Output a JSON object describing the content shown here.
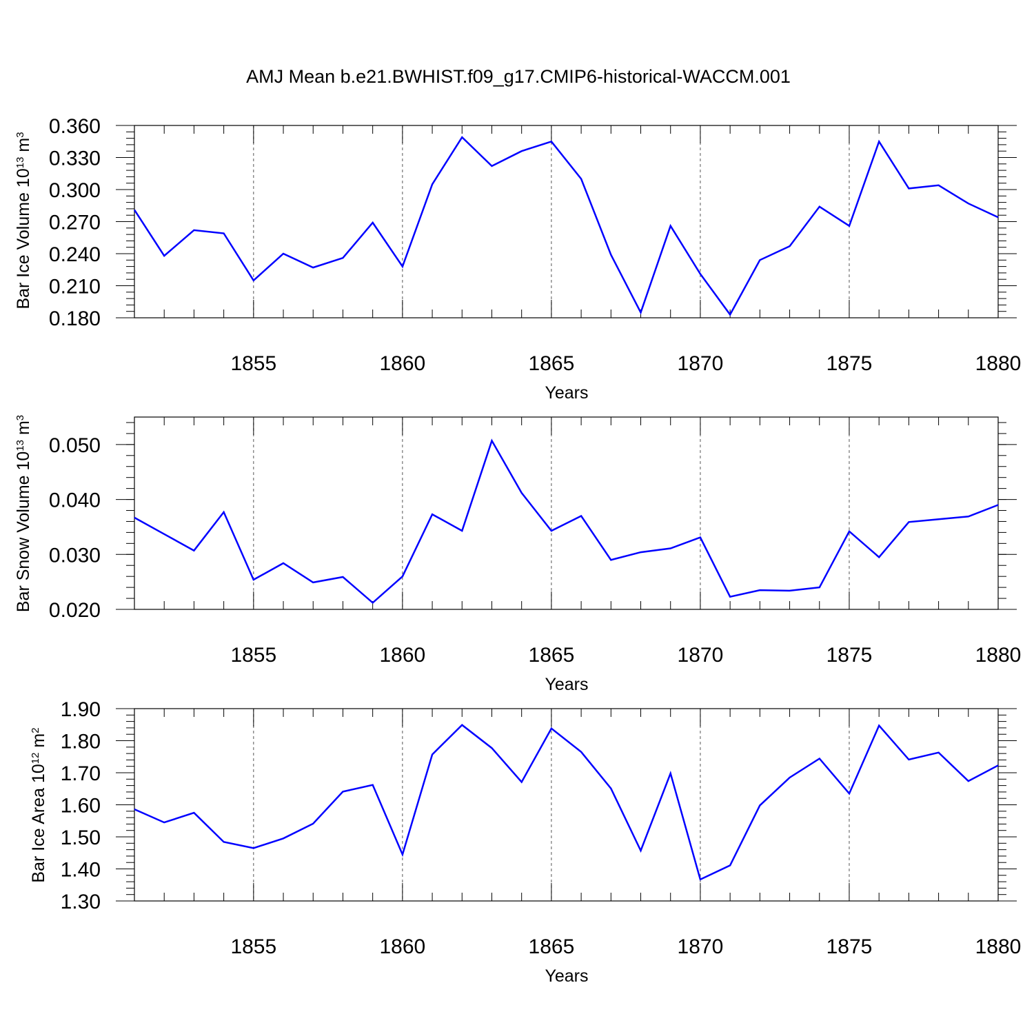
{
  "figure": {
    "title": "AMJ Mean b.e21.BWHIST.f09_g17.CMIP6-historical-WACCM.001"
  },
  "colors": {
    "series": "#0000ff",
    "axes": "#000000",
    "grid": "#555555"
  },
  "chart_data": [
    {
      "type": "line",
      "ylabel_parts": [
        "Bar Ice Volume 10",
        "13",
        " m",
        "3"
      ],
      "xlabel": "Years",
      "xlim": [
        1851,
        1880
      ],
      "ylim": [
        0.18,
        0.36
      ],
      "yticks": [
        "0.180",
        "0.210",
        "0.240",
        "0.270",
        "0.300",
        "0.330",
        "0.360"
      ],
      "xticks": [
        "1855",
        "1860",
        "1865",
        "1870",
        "1875",
        "1880"
      ],
      "grid": "vertical dashed at major x ticks",
      "x": [
        1851,
        1852,
        1853,
        1854,
        1855,
        1856,
        1857,
        1858,
        1859,
        1860,
        1861,
        1862,
        1863,
        1864,
        1865,
        1866,
        1867,
        1868,
        1869,
        1870,
        1871,
        1872,
        1873,
        1874,
        1875,
        1876,
        1877,
        1878,
        1879,
        1880
      ],
      "series": [
        {
          "values": [
            0.281,
            0.238,
            0.262,
            0.259,
            0.215,
            0.24,
            0.227,
            0.236,
            0.269,
            0.228,
            0.305,
            0.349,
            0.322,
            0.336,
            0.345,
            0.31,
            0.239,
            0.185,
            0.266,
            0.221,
            0.183,
            0.234,
            0.247,
            0.284,
            0.266,
            0.345,
            0.301,
            0.304,
            0.287,
            0.274
          ]
        }
      ]
    },
    {
      "type": "line",
      "ylabel_parts": [
        "Bar Snow Volume 10",
        "13",
        " m",
        "3"
      ],
      "xlabel": "Years",
      "xlim": [
        1851,
        1880
      ],
      "ylim": [
        0.02,
        0.055
      ],
      "yticks": [
        "0.020",
        "0.030",
        "0.040",
        "0.050"
      ],
      "xticks": [
        "1855",
        "1860",
        "1865",
        "1870",
        "1875",
        "1880"
      ],
      "grid": "vertical dashed at major x ticks",
      "x": [
        1851,
        1852,
        1853,
        1854,
        1855,
        1856,
        1857,
        1858,
        1859,
        1860,
        1861,
        1862,
        1863,
        1864,
        1865,
        1866,
        1867,
        1868,
        1869,
        1870,
        1871,
        1872,
        1873,
        1874,
        1875,
        1876,
        1877,
        1878,
        1879,
        1880
      ],
      "series": [
        {
          "values": [
            0.0367,
            0.0337,
            0.0307,
            0.0377,
            0.0254,
            0.0284,
            0.0249,
            0.0259,
            0.0212,
            0.026,
            0.0373,
            0.0343,
            0.0507,
            0.0412,
            0.0343,
            0.037,
            0.029,
            0.0304,
            0.0311,
            0.0331,
            0.0223,
            0.0235,
            0.0234,
            0.024,
            0.0342,
            0.0295,
            0.0359,
            0.0364,
            0.0369,
            0.039
          ]
        }
      ]
    },
    {
      "type": "line",
      "ylabel_parts": [
        "Bar Ice Area 10",
        "12",
        " m",
        "2"
      ],
      "xlabel": "Years",
      "xlim": [
        1851,
        1880
      ],
      "ylim": [
        1.3,
        1.9
      ],
      "yticks": [
        "1.30",
        "1.40",
        "1.50",
        "1.60",
        "1.70",
        "1.80",
        "1.90"
      ],
      "xticks": [
        "1855",
        "1860",
        "1865",
        "1870",
        "1875",
        "1880"
      ],
      "grid": "vertical dashed at major x ticks",
      "x": [
        1851,
        1852,
        1853,
        1854,
        1855,
        1856,
        1857,
        1858,
        1859,
        1860,
        1861,
        1862,
        1863,
        1864,
        1865,
        1866,
        1867,
        1868,
        1869,
        1870,
        1871,
        1872,
        1873,
        1874,
        1875,
        1876,
        1877,
        1878,
        1879,
        1880
      ],
      "series": [
        {
          "values": [
            1.586,
            1.545,
            1.575,
            1.484,
            1.465,
            1.495,
            1.541,
            1.641,
            1.662,
            1.445,
            1.757,
            1.849,
            1.777,
            1.671,
            1.838,
            1.765,
            1.651,
            1.457,
            1.698,
            1.367,
            1.411,
            1.598,
            1.685,
            1.744,
            1.635,
            1.847,
            1.741,
            1.763,
            1.674,
            1.723
          ]
        }
      ]
    }
  ]
}
